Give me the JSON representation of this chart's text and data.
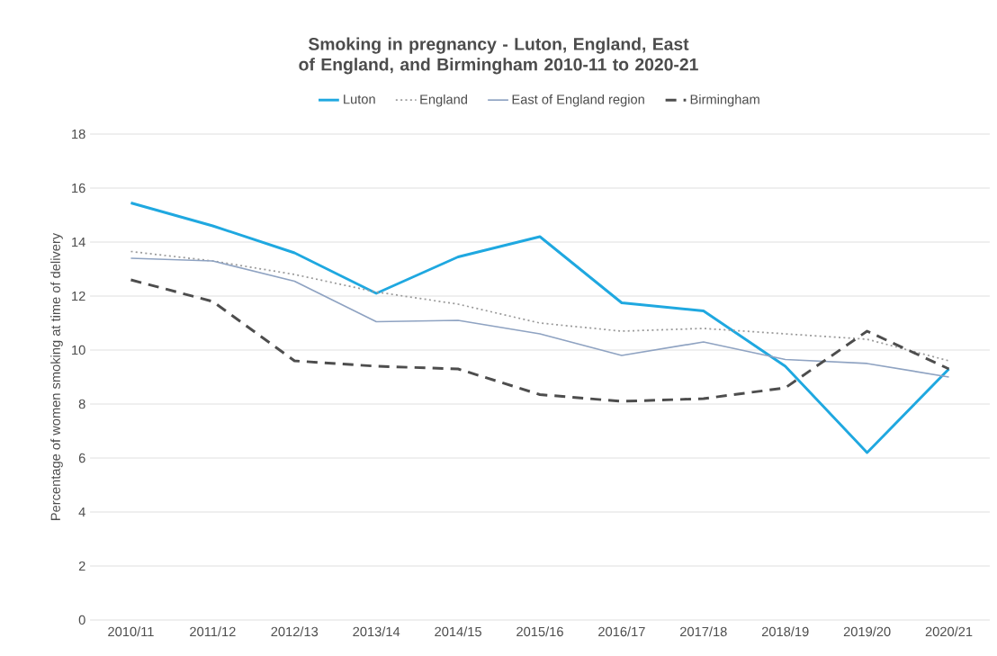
{
  "chart_data": {
    "type": "line",
    "title": "Smoking in pregnancy - Luton, England, East of England, and Birmingham 2010-11 to 2020-21",
    "ylabel": "Percentage of women smoking at time of delivery",
    "categories": [
      "2010/11",
      "2011/12",
      "2012/13",
      "2013/14",
      "2014/15",
      "2015/16",
      "2016/17",
      "2017/18",
      "2018/19",
      "2019/20",
      "2020/21"
    ],
    "series": [
      {
        "name": "Luton",
        "color": "#1fa8e0",
        "line_style": "solid",
        "values": [
          15.45,
          14.6,
          13.6,
          12.1,
          13.45,
          14.2,
          11.75,
          11.45,
          9.4,
          6.2,
          9.3
        ]
      },
      {
        "name": "England",
        "color": "#9a9a9a",
        "line_style": "dotted",
        "values": [
          13.65,
          13.3,
          12.8,
          12.15,
          11.7,
          11.0,
          10.7,
          10.8,
          10.6,
          10.4,
          9.6
        ]
      },
      {
        "name": "East of England region",
        "color": "#8fa3c2",
        "line_style": "solid",
        "values": [
          13.4,
          13.3,
          12.55,
          11.05,
          11.1,
          10.6,
          9.8,
          10.3,
          9.65,
          9.5,
          9.0
        ]
      },
      {
        "name": "Birmingham",
        "color": "#4d4d4d",
        "line_style": "dashed",
        "values": [
          12.6,
          11.8,
          9.6,
          9.4,
          9.3,
          8.35,
          8.1,
          8.2,
          8.6,
          10.7,
          9.3
        ]
      }
    ],
    "ylim": [
      0,
      18
    ],
    "yticks": [
      0,
      2,
      4,
      6,
      8,
      10,
      12,
      14,
      16,
      18
    ],
    "grid": "y",
    "legend": "top"
  }
}
